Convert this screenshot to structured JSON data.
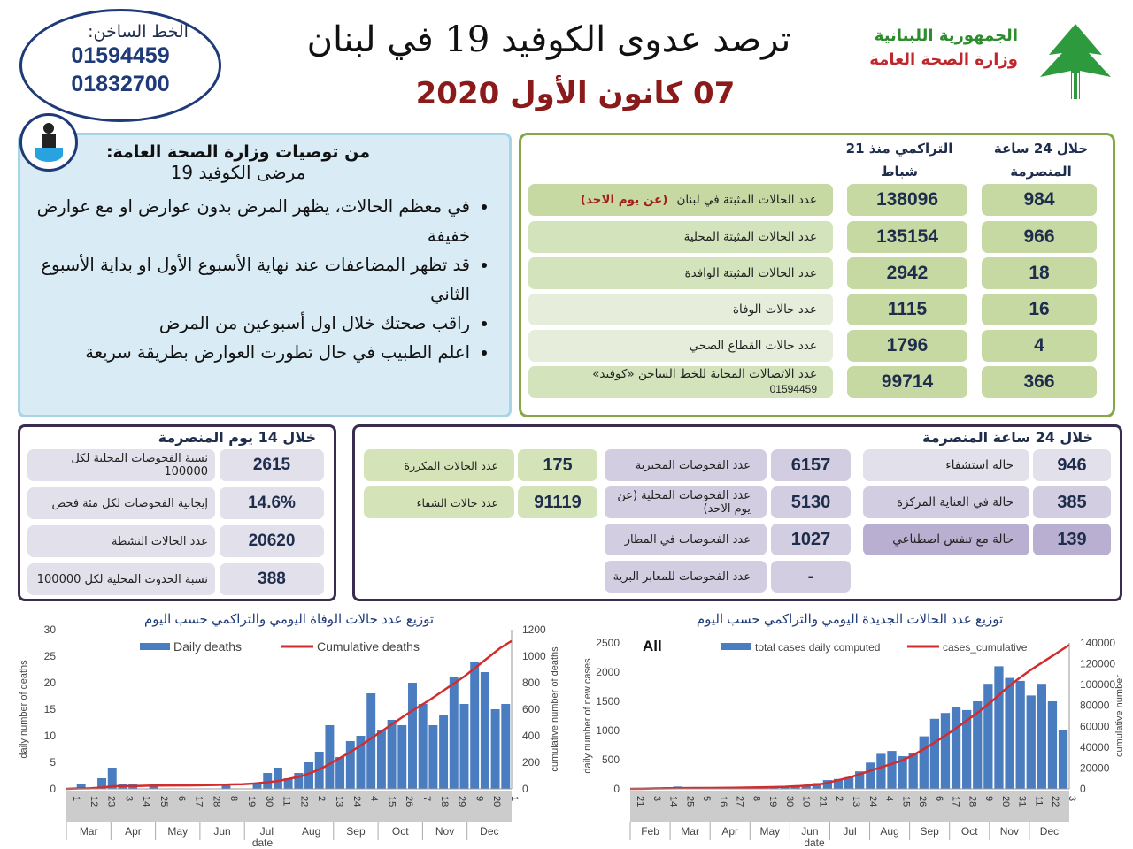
{
  "hotline": {
    "label": "الخط الساخن:",
    "numbers": [
      "01594459",
      "01832700"
    ]
  },
  "header": {
    "title": "ترصد عدوى الكوفيد 19 في لبنان",
    "date": "07 كانون الأول 2020",
    "ministry_line1": "الجمهورية اللبنانية",
    "ministry_line2": "وزارة الصحة العامة"
  },
  "recommendations": {
    "title": "من توصيات وزارة الصحة العامة:",
    "subtitle": "مرضى الكوفيد 19",
    "items": [
      "في معظم الحالات، يظهر المرض بدون عوارض او مع عوارض خفيفة",
      "قد تظهر المضاعفات عند نهاية الأسبوع الأول او بداية الأسبوع الثاني",
      "راقب صحتك خلال اول أسبوعين من المرض",
      "اعلم الطبيب في حال تطورت العوارض بطريقة سريعة"
    ]
  },
  "stats": {
    "col_24h": "خلال 24 ساعة المنصرمة",
    "col_cum": "التراكمي منذ 21 شباط",
    "rows": [
      {
        "label": "عدد الحالات المثبتة في لبنان",
        "note": "(عن يوم الاحد)",
        "cumulative": "138096",
        "last24": "984"
      },
      {
        "label": "عدد الحالات المثبتة المحلية",
        "cumulative": "135154",
        "last24": "966"
      },
      {
        "label": "عدد الحالات المثبتة الوافدة",
        "cumulative": "2942",
        "last24": "18"
      },
      {
        "label": "عدد حالات الوفاة",
        "cumulative": "1115",
        "last24": "16"
      },
      {
        "label": "عدد حالات القطاع الصحي",
        "cumulative": "1796",
        "last24": "4"
      },
      {
        "label": "عدد الاتصالات المجابة للخط الساخن «كوفيد»",
        "note": "01594459",
        "cumulative": "99714",
        "last24": "366"
      }
    ]
  },
  "fourteen_days": {
    "title": "خلال 14 يوم المنصرمة",
    "rows": [
      {
        "label": "نسبة الفحوصات المحلية لكل 100000",
        "value": "2615"
      },
      {
        "label": "إيجابية الفحوصات لكل مئة فحص",
        "value": "14.6%"
      },
      {
        "label": "عدد الحالات النشطة",
        "value": "20620"
      },
      {
        "label": "نسبة الحدوث المحلية لكل 100000",
        "value": "388"
      }
    ]
  },
  "last24": {
    "title": "خلال 24 ساعة المنصرمة",
    "hospital": [
      {
        "label": "حالة استشفاء",
        "value": "946"
      },
      {
        "label": "حالة في العناية المركزة",
        "value": "385"
      },
      {
        "label": "حالة مع تنفس اصطناعي",
        "value": "139"
      }
    ],
    "tests": [
      {
        "label": "عدد الفحوصات المخبرية",
        "value": "6157"
      },
      {
        "label": "عدد الفحوصات المحلية (عن يوم الاحد)",
        "value": "5130"
      },
      {
        "label": "عدد الفحوصات في المطار",
        "value": "1027"
      },
      {
        "label": "عدد الفحوصات للمعابر البرية",
        "value": "-"
      }
    ],
    "other": [
      {
        "label": "عدد الحالات المكررة",
        "value": "175"
      },
      {
        "label": "عدد حالات الشفاء",
        "value": "91119"
      }
    ]
  },
  "chart_data": [
    {
      "type": "bar+line",
      "title": "توزيع عدد حالات الوفاة اليومي والتراكمي حسب اليوم",
      "xlabel": "date",
      "ylabel": "daily number of deaths",
      "y2label": "cumulative number of deaths",
      "ylim": [
        0,
        30
      ],
      "y2lim": [
        0,
        1200
      ],
      "yticks": [
        0,
        5,
        10,
        15,
        20,
        25,
        30
      ],
      "y2ticks": [
        0,
        200,
        400,
        600,
        800,
        1000,
        1200
      ],
      "months": [
        "Mar",
        "Apr",
        "May",
        "Jun",
        "Jul",
        "Aug",
        "Sep",
        "Oct",
        "Nov",
        "Dec"
      ],
      "day_ticks": [
        "1",
        "12",
        "23",
        "3",
        "14",
        "25",
        "6",
        "17",
        "28",
        "8",
        "19",
        "30",
        "11",
        "22",
        "2",
        "13",
        "24",
        "4",
        "15",
        "26",
        "7",
        "18",
        "29",
        "9",
        "20",
        "1"
      ],
      "series": [
        {
          "name": "Daily deaths",
          "color": "#4a7cc0",
          "values": [
            0,
            1,
            0,
            2,
            4,
            1,
            1,
            0,
            1,
            0,
            0,
            0,
            0,
            0,
            0,
            1,
            0,
            0,
            1,
            3,
            4,
            2,
            3,
            5,
            7,
            12,
            6,
            9,
            10,
            18,
            11,
            13,
            12,
            20,
            16,
            12,
            14,
            21,
            16,
            24,
            22,
            15,
            16
          ]
        },
        {
          "name": "Cumulative deaths",
          "color": "#d22c2c",
          "values": [
            0,
            3,
            4,
            10,
            20,
            21,
            22,
            24,
            25,
            26,
            26,
            27,
            28,
            30,
            33,
            35,
            40,
            48,
            58,
            75,
            95,
            125,
            165,
            215,
            265,
            320,
            380,
            440,
            500,
            560,
            615,
            670,
            730,
            790,
            850,
            920,
            990,
            1060,
            1115
          ]
        }
      ],
      "grid": false,
      "legend": "top"
    },
    {
      "type": "bar+line",
      "title": "توزيع عدد الحالات الجديدة اليومي والتراكمي حسب اليوم",
      "annotation": "All",
      "xlabel": "date",
      "ylabel": "daily number of new cases",
      "y2label": "cumulative number",
      "ylim": [
        0,
        2500
      ],
      "y2lim": [
        0,
        140000
      ],
      "yticks": [
        0,
        500,
        1000,
        1500,
        2000,
        2500
      ],
      "y2ticks": [
        0,
        20000,
        40000,
        60000,
        80000,
        100000,
        120000,
        140000
      ],
      "months": [
        "Feb",
        "Mar",
        "Apr",
        "May",
        "Jun",
        "Jul",
        "Aug",
        "Sep",
        "Oct",
        "Nov",
        "Dec"
      ],
      "day_ticks": [
        "21",
        "3",
        "14",
        "25",
        "5",
        "16",
        "27",
        "8",
        "19",
        "30",
        "10",
        "21",
        "2",
        "13",
        "24",
        "4",
        "15",
        "26",
        "6",
        "17",
        "28",
        "9",
        "20",
        "31",
        "11",
        "22",
        "3"
      ],
      "series": [
        {
          "name": "total cases daily computed",
          "color": "#4a7cc0",
          "values": [
            0,
            5,
            20,
            30,
            40,
            25,
            15,
            10,
            8,
            10,
            20,
            30,
            15,
            20,
            40,
            30,
            60,
            100,
            150,
            170,
            200,
            300,
            450,
            600,
            650,
            560,
            620,
            900,
            1200,
            1300,
            1400,
            1350,
            1500,
            1800,
            2100,
            1900,
            1850,
            1600,
            1800,
            1500,
            1000
          ]
        },
        {
          "name": "cases_cumulative",
          "color": "#d22c2c",
          "values": [
            0,
            100,
            400,
            550,
            700,
            800,
            900,
            1000,
            1100,
            1300,
            1500,
            1700,
            2000,
            2600,
            3500,
            5000,
            8000,
            11000,
            15000,
            19000,
            23000,
            27000,
            33000,
            40000,
            48000,
            56000,
            65000,
            74000,
            84000,
            95000,
            105000,
            114000,
            122000,
            130000,
            138096
          ]
        }
      ],
      "grid": false,
      "legend": "top"
    }
  ]
}
